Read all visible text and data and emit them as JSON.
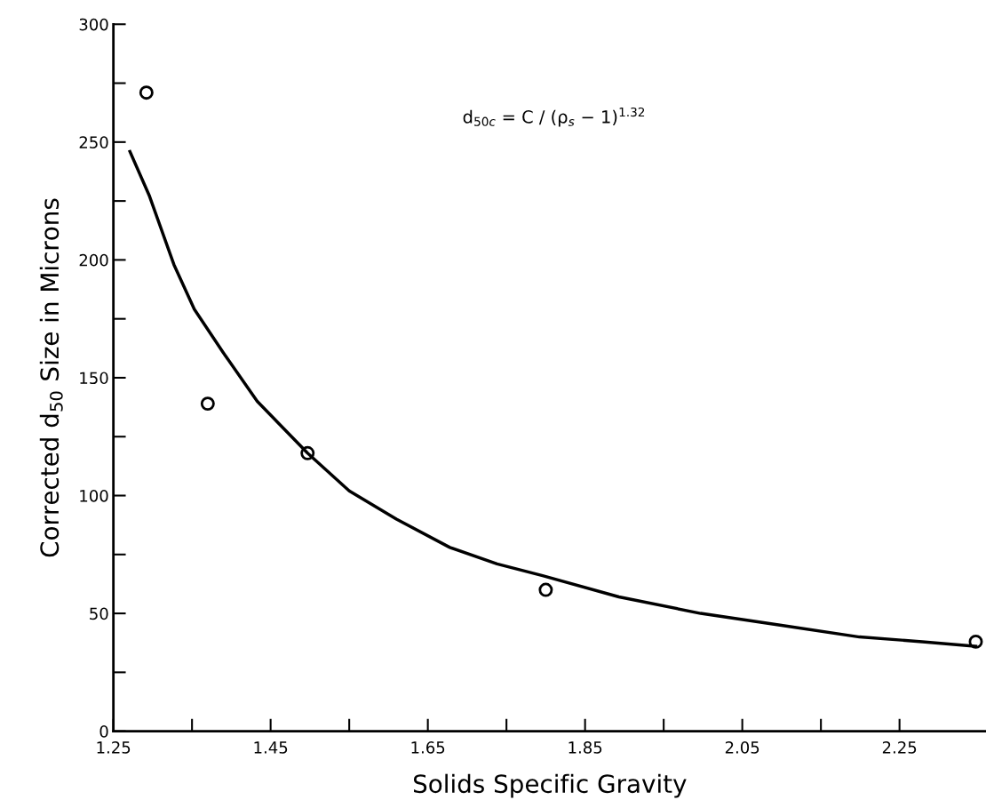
{
  "chart_data": {
    "type": "scatter",
    "xlabel": "Solids Specific Gravity",
    "ylabel": "Corrected d$_{50}$ Size in Microns",
    "annotations": [
      "d$_{50c}$ = C / (ρ$_{s}$ − 1)$^{1.32}$"
    ],
    "series": [
      {
        "color": "#000000",
        "marker": "circle",
        "x": [
          1.292,
          1.37,
          1.497,
          1.8,
          2.347
        ],
        "values": [
          271,
          139,
          118,
          60,
          38
        ]
      },
      {
        "type": "line",
        "color": "#000000",
        "marker": "none",
        "line_style": "solid",
        "x": [
          1.271,
          1.296,
          1.327,
          1.353,
          1.389,
          1.433,
          1.497,
          1.55,
          1.61,
          1.678,
          1.738,
          1.796,
          1.893,
          1.997,
          2.098,
          2.199,
          2.279,
          2.347
        ],
        "values": [
          246,
          227,
          198,
          179,
          161,
          140,
          118,
          102,
          90,
          78,
          71,
          66,
          57,
          50,
          45,
          40,
          38,
          36
        ]
      }
    ],
    "xlim": [
      1.25,
      2.36
    ],
    "ylim": [
      0,
      300
    ],
    "xticks": [
      1.25,
      {
        "value": 1.35,
        "label": null
      },
      1.45,
      {
        "value": 1.55,
        "label": null
      },
      1.65,
      {
        "value": 1.75,
        "label": null
      },
      1.85,
      {
        "value": 1.95,
        "label": null
      },
      2.05,
      {
        "value": 2.15,
        "label": null
      },
      2.25
    ],
    "yticks": [
      0,
      {
        "value": 25,
        "label": null
      },
      50,
      {
        "value": 75,
        "label": null
      },
      100,
      {
        "value": 125,
        "label": null
      },
      150,
      {
        "value": 175,
        "label": null
      },
      200,
      {
        "value": 225,
        "label": null
      },
      250,
      {
        "value": 275,
        "label": null
      },
      300
    ],
    "grid": false,
    "legend": false
  }
}
